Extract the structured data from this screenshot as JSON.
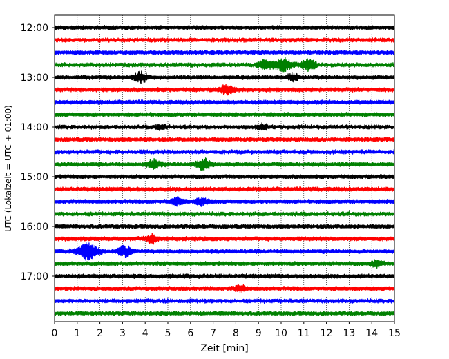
{
  "chart_data": {
    "type": "line",
    "chart_kind": "helicorder seismogram",
    "xlabel": "Zeit  [min]",
    "ylabel": "UTC (Lokalzeit = UTC + 01:00)",
    "xlim": [
      0,
      15
    ],
    "x_ticks": [
      "0",
      "1",
      "2",
      "3",
      "4",
      "5",
      "6",
      "7",
      "8",
      "9",
      "10",
      "11",
      "12",
      "13",
      "14",
      "15"
    ],
    "x_grid": "dotted vertical lines at every minute",
    "y_ticks": [
      "12:00",
      "13:00",
      "14:00",
      "15:00",
      "16:00",
      "17:00"
    ],
    "minutes_per_line": 15,
    "colors": [
      "#000000",
      "#ff0000",
      "#0000ff",
      "#008000"
    ],
    "rows": [
      {
        "start": "12:00",
        "color": "#000000"
      },
      {
        "start": "12:15",
        "color": "#ff0000"
      },
      {
        "start": "12:30",
        "color": "#0000ff"
      },
      {
        "start": "12:45",
        "color": "#008000"
      },
      {
        "start": "13:00",
        "color": "#000000"
      },
      {
        "start": "13:15",
        "color": "#ff0000"
      },
      {
        "start": "13:30",
        "color": "#0000ff"
      },
      {
        "start": "13:45",
        "color": "#008000"
      },
      {
        "start": "14:00",
        "color": "#000000"
      },
      {
        "start": "14:15",
        "color": "#ff0000"
      },
      {
        "start": "14:30",
        "color": "#0000ff"
      },
      {
        "start": "14:45",
        "color": "#008000"
      },
      {
        "start": "15:00",
        "color": "#000000"
      },
      {
        "start": "15:15",
        "color": "#ff0000"
      },
      {
        "start": "15:30",
        "color": "#0000ff"
      },
      {
        "start": "15:45",
        "color": "#008000"
      },
      {
        "start": "16:00",
        "color": "#000000"
      },
      {
        "start": "16:15",
        "color": "#ff0000"
      },
      {
        "start": "16:30",
        "color": "#0000ff"
      },
      {
        "start": "16:45",
        "color": "#008000"
      },
      {
        "start": "17:00",
        "color": "#000000"
      },
      {
        "start": "17:15",
        "color": "#ff0000"
      },
      {
        "start": "17:30",
        "color": "#0000ff"
      },
      {
        "start": "17:45",
        "color": "#008000"
      }
    ],
    "events": [
      {
        "start": "12:45",
        "minute": 9.3,
        "amplitude": 0.55
      },
      {
        "start": "12:45",
        "minute": 10.1,
        "amplitude": 0.75
      },
      {
        "start": "12:45",
        "minute": 11.2,
        "amplitude": 0.6
      },
      {
        "start": "13:00",
        "minute": 3.8,
        "amplitude": 0.55
      },
      {
        "start": "13:00",
        "minute": 10.5,
        "amplitude": 0.4
      },
      {
        "start": "13:15",
        "minute": 7.6,
        "amplitude": 0.5
      },
      {
        "start": "14:00",
        "minute": 9.2,
        "amplitude": 0.3
      },
      {
        "start": "14:00",
        "minute": 4.7,
        "amplitude": 0.25
      },
      {
        "start": "14:45",
        "minute": 4.4,
        "amplitude": 0.5
      },
      {
        "start": "14:45",
        "minute": 6.6,
        "amplitude": 0.65
      },
      {
        "start": "15:30",
        "minute": 5.4,
        "amplitude": 0.4
      },
      {
        "start": "15:30",
        "minute": 6.5,
        "amplitude": 0.4
      },
      {
        "start": "16:15",
        "minute": 4.3,
        "amplitude": 0.45
      },
      {
        "start": "16:30",
        "minute": 1.45,
        "amplitude": 1.0
      },
      {
        "start": "16:30",
        "minute": 3.1,
        "amplitude": 0.6
      },
      {
        "start": "16:45",
        "minute": 14.2,
        "amplitude": 0.35
      },
      {
        "start": "17:15",
        "minute": 8.2,
        "amplitude": 0.3
      }
    ]
  }
}
